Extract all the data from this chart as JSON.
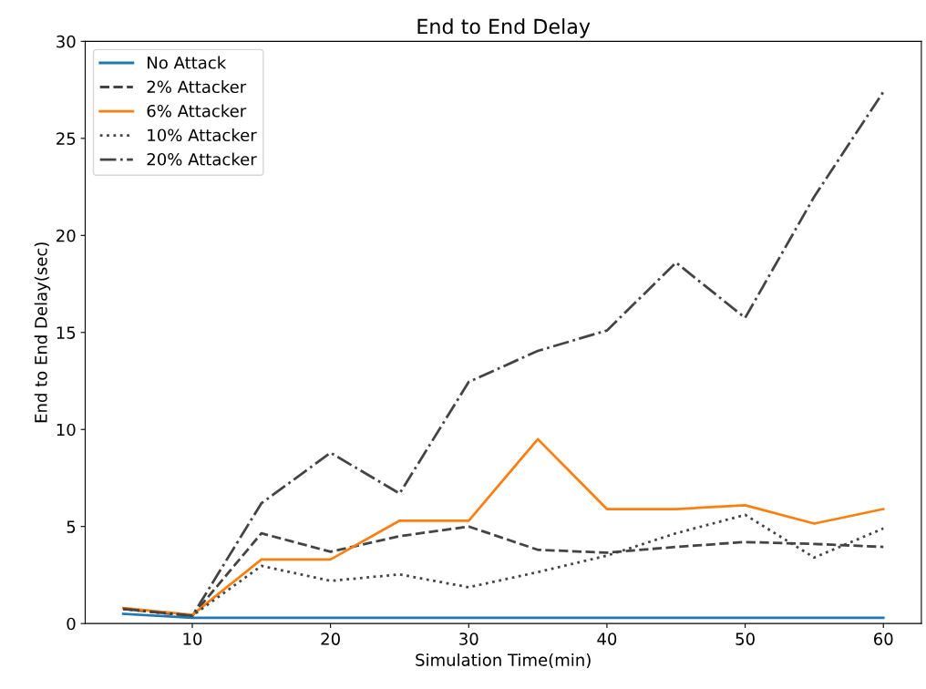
{
  "chart_data": {
    "type": "line",
    "title": "End to End Delay",
    "xlabel": "Simulation Time(min)",
    "ylabel": "End to End Delay(sec)",
    "x": [
      5,
      10,
      15,
      20,
      25,
      30,
      35,
      40,
      45,
      50,
      55,
      60
    ],
    "series": [
      {
        "name": "No Attack",
        "color": "#1f77b4",
        "line_style": "solid",
        "values": [
          0.5,
          0.3,
          0.3,
          0.3,
          0.3,
          0.3,
          0.3,
          0.3,
          0.3,
          0.3,
          0.3,
          0.3
        ]
      },
      {
        "name": "2% Attacker",
        "color": "#444444",
        "line_style": "dashed",
        "values": [
          0.75,
          0.4,
          4.65,
          3.7,
          4.5,
          5.0,
          3.8,
          3.65,
          3.95,
          4.2,
          4.1,
          3.95
        ]
      },
      {
        "name": "6% Attacker",
        "color": "#ff7f0e",
        "line_style": "solid",
        "values": [
          0.8,
          0.45,
          3.3,
          3.3,
          5.3,
          5.3,
          9.5,
          5.9,
          5.9,
          6.1,
          5.15,
          5.9
        ]
      },
      {
        "name": "10% Attacker",
        "color": "#444444",
        "line_style": "dotted",
        "values": [
          0.75,
          0.4,
          2.97,
          2.2,
          2.53,
          1.87,
          2.65,
          3.5,
          4.65,
          5.6,
          3.4,
          4.9
        ]
      },
      {
        "name": "20% Attacker",
        "color": "#444444",
        "line_style": "dashdot",
        "values": [
          0.75,
          0.4,
          6.2,
          8.8,
          6.7,
          12.45,
          14.05,
          15.1,
          18.6,
          15.75,
          22.0,
          27.4
        ]
      }
    ],
    "xlim": [
      2.25,
      62.75
    ],
    "xticks": [
      10,
      20,
      30,
      40,
      50,
      60
    ],
    "ylim": [
      0,
      30
    ],
    "yticks": [
      0,
      5,
      10,
      15,
      20,
      25,
      30
    ],
    "legend": "upper left",
    "grid": false
  }
}
